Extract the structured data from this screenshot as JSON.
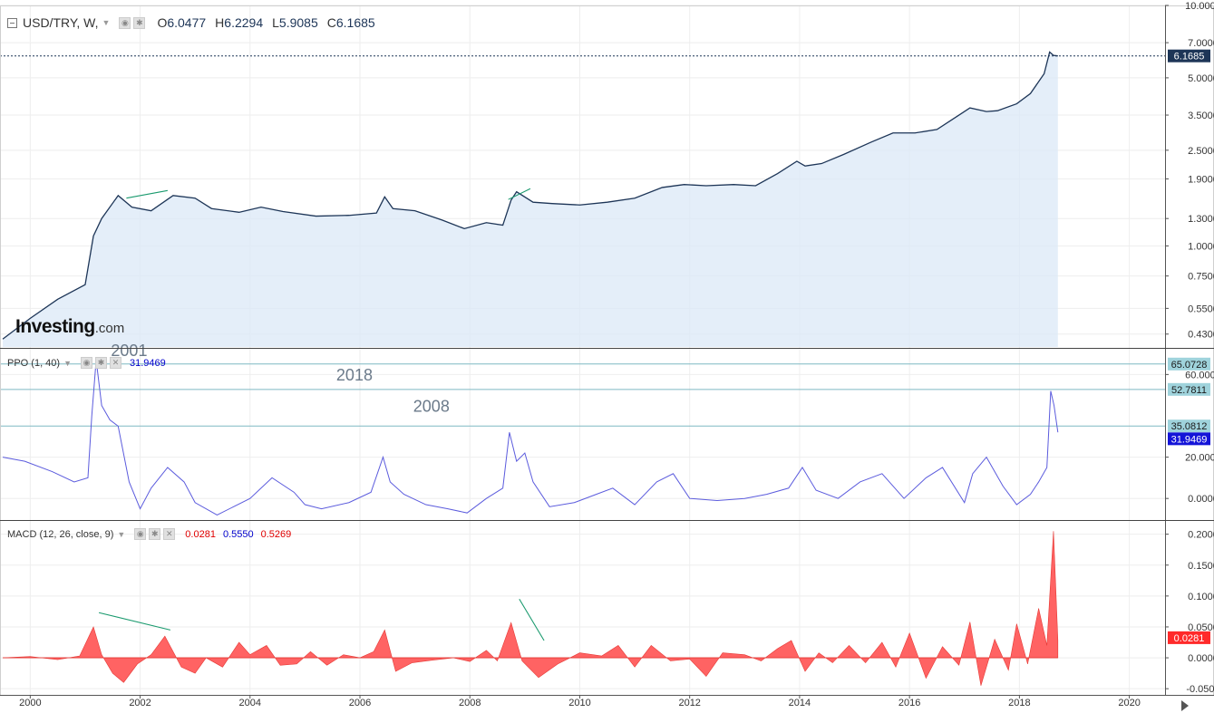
{
  "header": {
    "symbol": "USD/TRY, W,",
    "open_label": "O",
    "open": "6.0477",
    "high_label": "H",
    "high": "6.2294",
    "low_label": "L",
    "low": "5.9085",
    "close_label": "C",
    "close": "6.1685"
  },
  "ppo_header": {
    "label": "PPO (1, 40)",
    "value": "31.9469"
  },
  "macd_header": {
    "label": "MACD (12, 26, close, 9)",
    "v1": "0.0281",
    "v2": "0.5550",
    "v3": "0.5269"
  },
  "logo": {
    "brand": "Investing",
    "suffix": ".com"
  },
  "colors": {
    "price_line": "#1d3557",
    "price_fill": "#dbe8f7",
    "ppo_line": "#5b5bdd",
    "macd_fill": "#ff5252",
    "trend": "#1a9a6e",
    "level": "#7fb9c4"
  },
  "chart_data": [
    {
      "type": "area",
      "title": "USD/TRY, W,",
      "ylabel": "",
      "scale": "log",
      "ylim": [
        0.38,
        10.0
      ],
      "yticks": [
        "10.0000",
        "7.0000",
        "5.0000",
        "3.5000",
        "2.5000",
        "1.9000",
        "1.3000",
        "1.0000",
        "0.7500",
        "0.5500",
        "0.4300"
      ],
      "ytick_values": [
        10.0,
        7.0,
        5.0,
        3.5,
        2.5,
        1.9,
        1.3,
        1.0,
        0.75,
        0.55,
        0.43
      ],
      "last_value": "6.1685",
      "x": [
        1999.5,
        2000.0,
        2000.5,
        2001.0,
        2001.15,
        2001.3,
        2001.6,
        2001.85,
        2002.2,
        2002.6,
        2003.0,
        2003.3,
        2003.8,
        2004.2,
        2004.6,
        2005.2,
        2005.8,
        2006.3,
        2006.45,
        2006.6,
        2007.0,
        2007.5,
        2007.9,
        2008.3,
        2008.6,
        2008.75,
        2008.85,
        2009.15,
        2009.5,
        2010.0,
        2010.5,
        2011.0,
        2011.5,
        2011.9,
        2012.3,
        2012.8,
        2013.2,
        2013.6,
        2013.95,
        2014.1,
        2014.4,
        2014.8,
        2015.3,
        2015.7,
        2016.1,
        2016.5,
        2016.9,
        2017.1,
        2017.4,
        2017.6,
        2017.95,
        2018.2,
        2018.45,
        2018.55,
        2018.62,
        2018.7
      ],
      "y": [
        0.41,
        0.5,
        0.6,
        0.69,
        1.1,
        1.3,
        1.62,
        1.45,
        1.4,
        1.62,
        1.58,
        1.43,
        1.38,
        1.45,
        1.39,
        1.33,
        1.34,
        1.37,
        1.6,
        1.43,
        1.4,
        1.28,
        1.18,
        1.25,
        1.22,
        1.55,
        1.68,
        1.52,
        1.5,
        1.48,
        1.52,
        1.58,
        1.75,
        1.8,
        1.78,
        1.8,
        1.78,
        2.0,
        2.25,
        2.15,
        2.2,
        2.4,
        2.7,
        2.95,
        2.95,
        3.05,
        3.5,
        3.75,
        3.62,
        3.65,
        3.9,
        4.3,
        5.2,
        6.4,
        6.2,
        6.17
      ],
      "trendlines": [
        {
          "x": [
            2001.75,
            2002.5
          ],
          "y": [
            1.58,
            1.7
          ]
        },
        {
          "x": [
            2008.7,
            2009.1
          ],
          "y": [
            1.56,
            1.73
          ]
        }
      ]
    },
    {
      "type": "line",
      "title": "PPO (1, 40)",
      "ylim": [
        -10,
        72
      ],
      "yticks": [
        "60.0000",
        "20.0000",
        "0.0000"
      ],
      "ytick_values": [
        60,
        20,
        0
      ],
      "levels": [
        65.0728,
        52.7811,
        35.0812
      ],
      "level_labels": [
        "65.0728",
        "52.7811",
        "35.0812"
      ],
      "last_value": "31.9469",
      "annotations": [
        {
          "text": "2001",
          "x": 2001.8,
          "y": 69
        },
        {
          "text": "2018",
          "x": 2005.9,
          "y": 57
        },
        {
          "text": "2008",
          "x": 2007.3,
          "y": 42
        }
      ],
      "x": [
        1999.5,
        1999.9,
        2000.4,
        2000.8,
        2001.05,
        2001.12,
        2001.2,
        2001.3,
        2001.45,
        2001.6,
        2001.8,
        2002.0,
        2002.2,
        2002.5,
        2002.8,
        2003.0,
        2003.4,
        2003.7,
        2004.0,
        2004.4,
        2004.8,
        2005.0,
        2005.3,
        2005.8,
        2006.2,
        2006.42,
        2006.55,
        2006.8,
        2007.2,
        2007.6,
        2007.95,
        2008.3,
        2008.6,
        2008.72,
        2008.85,
        2009.0,
        2009.15,
        2009.45,
        2009.9,
        2010.3,
        2010.6,
        2011.0,
        2011.4,
        2011.7,
        2012.0,
        2012.5,
        2013.0,
        2013.4,
        2013.8,
        2014.05,
        2014.3,
        2014.7,
        2015.1,
        2015.5,
        2015.9,
        2016.3,
        2016.6,
        2017.0,
        2017.15,
        2017.4,
        2017.7,
        2017.95,
        2018.2,
        2018.35,
        2018.5,
        2018.57,
        2018.63,
        2018.7
      ],
      "y": [
        20,
        18,
        13,
        8,
        10,
        40,
        67,
        45,
        38,
        35,
        8,
        -5,
        5,
        15,
        8,
        -2,
        -8,
        -4,
        0,
        10,
        3,
        -3,
        -5,
        -2,
        3,
        20,
        8,
        2,
        -3,
        -5,
        -7,
        0,
        5,
        32,
        18,
        22,
        8,
        -4,
        -2,
        2,
        5,
        -3,
        8,
        12,
        0,
        -1,
        0,
        2,
        5,
        15,
        4,
        0,
        8,
        12,
        0,
        10,
        15,
        -2,
        12,
        20,
        6,
        -3,
        2,
        8,
        15,
        52,
        45,
        32
      ]
    },
    {
      "type": "area",
      "title": "MACD (12, 26, close, 9)",
      "ylim": [
        -0.06,
        0.22
      ],
      "yticks": [
        "0.2000",
        "0.1500",
        "0.1000",
        "0.0500",
        "0.0000",
        "-0.0500"
      ],
      "ytick_values": [
        0.2,
        0.15,
        0.1,
        0.05,
        0.0,
        -0.05
      ],
      "last_value": "0.0281",
      "x": [
        1999.5,
        2000.0,
        2000.5,
        2000.9,
        2001.15,
        2001.3,
        2001.5,
        2001.7,
        2001.95,
        2002.2,
        2002.45,
        2002.75,
        2003.0,
        2003.2,
        2003.5,
        2003.8,
        2004.0,
        2004.3,
        2004.55,
        2004.85,
        2005.1,
        2005.4,
        2005.7,
        2006.0,
        2006.25,
        2006.45,
        2006.65,
        2006.95,
        2007.3,
        2007.7,
        2008.0,
        2008.3,
        2008.5,
        2008.75,
        2008.95,
        2009.25,
        2009.6,
        2010.0,
        2010.4,
        2010.7,
        2011.0,
        2011.3,
        2011.65,
        2012.0,
        2012.3,
        2012.6,
        2013.0,
        2013.3,
        2013.6,
        2013.85,
        2014.1,
        2014.35,
        2014.6,
        2014.9,
        2015.2,
        2015.5,
        2015.75,
        2016.0,
        2016.3,
        2016.6,
        2016.9,
        2017.1,
        2017.3,
        2017.55,
        2017.8,
        2017.95,
        2018.15,
        2018.35,
        2018.5,
        2018.62,
        2018.7
      ],
      "y": [
        0.0,
        0.002,
        -0.003,
        0.003,
        0.05,
        0.005,
        -0.025,
        -0.04,
        -0.01,
        0.005,
        0.035,
        -0.015,
        -0.025,
        0.0,
        -0.015,
        0.025,
        0.005,
        0.02,
        -0.012,
        -0.01,
        0.01,
        -0.012,
        0.005,
        0.0,
        0.01,
        0.045,
        -0.022,
        -0.008,
        -0.004,
        0.0,
        -0.006,
        0.012,
        -0.005,
        0.057,
        -0.005,
        -0.032,
        -0.01,
        0.008,
        0.003,
        0.02,
        -0.015,
        0.02,
        -0.005,
        -0.002,
        -0.03,
        0.008,
        0.005,
        -0.005,
        0.015,
        0.028,
        -0.022,
        0.008,
        -0.008,
        0.02,
        -0.008,
        0.025,
        -0.015,
        0.04,
        -0.033,
        0.018,
        -0.012,
        0.058,
        -0.045,
        0.03,
        -0.02,
        0.055,
        -0.01,
        0.08,
        0.02,
        0.205,
        0.028
      ],
      "trendlines": [
        {
          "x": [
            2001.25,
            2002.55
          ],
          "y": [
            0.073,
            0.045
          ]
        },
        {
          "x": [
            2008.9,
            2009.35
          ],
          "y": [
            0.095,
            0.028
          ]
        }
      ]
    }
  ],
  "x_axis": {
    "xlim": [
      1999.45,
      2020.65
    ],
    "tick_labels": [
      "2000",
      "2002",
      "2004",
      "2006",
      "2008",
      "2010",
      "2012",
      "2014",
      "2016",
      "2018",
      "2020"
    ],
    "tick_values": [
      2000,
      2002,
      2004,
      2006,
      2008,
      2010,
      2012,
      2014,
      2016,
      2018,
      2020
    ]
  }
}
